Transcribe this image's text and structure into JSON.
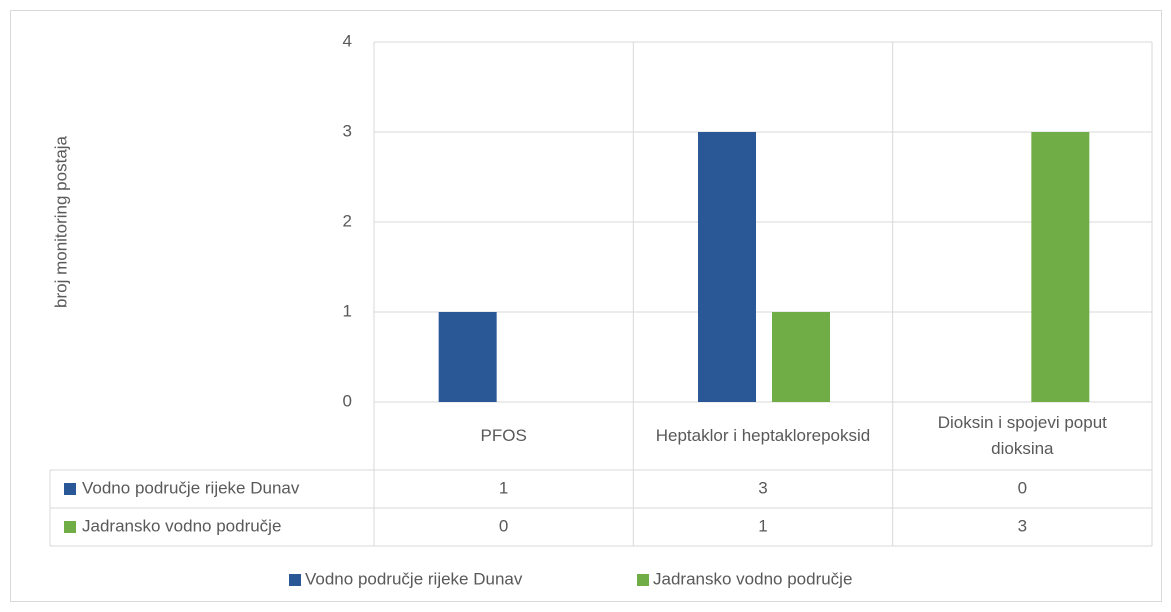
{
  "chart_data": {
    "type": "bar",
    "y_axis_label": "broj monitoring postaja",
    "categories": [
      "PFOS",
      "Heptaklor i heptaklorepoksid",
      "Dioksin i spojevi poput dioksina"
    ],
    "series": [
      {
        "name": "Vodno područje rijeke Dunav",
        "color": "#2a5795",
        "values": [
          1,
          3,
          0
        ]
      },
      {
        "name": "Jadransko vodno područje",
        "color": "#70ad47",
        "values": [
          0,
          1,
          3
        ]
      }
    ],
    "ylim": [
      0,
      4
    ],
    "yticks": [
      0,
      1,
      2,
      3,
      4
    ],
    "grid": true
  }
}
